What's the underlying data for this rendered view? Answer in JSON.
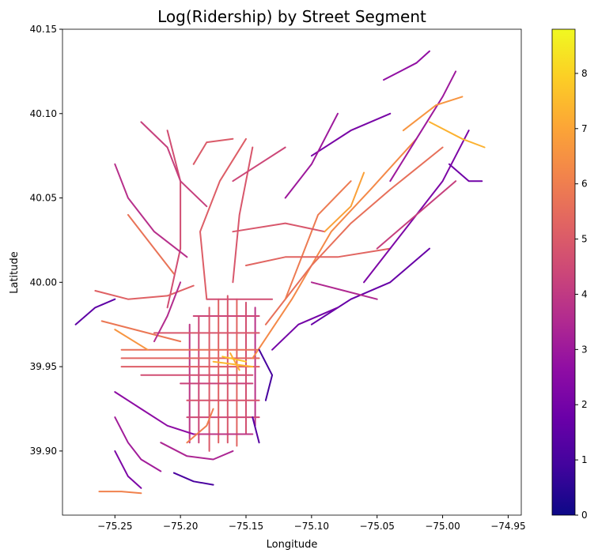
{
  "chart_data": {
    "type": "map",
    "title": "Log(Ridership) by Street Segment",
    "xlabel": "Longitude",
    "ylabel": "Latitude",
    "xlim": [
      -75.29,
      -74.94
    ],
    "ylim": [
      39.862,
      40.15
    ],
    "xticks": [
      {
        "value": -75.25,
        "label": "−75.25"
      },
      {
        "value": -75.2,
        "label": "−75.20"
      },
      {
        "value": -75.15,
        "label": "−75.15"
      },
      {
        "value": -75.1,
        "label": "−75.10"
      },
      {
        "value": -75.05,
        "label": "−75.05"
      },
      {
        "value": -75.0,
        "label": "−75.00"
      },
      {
        "value": -74.95,
        "label": "−74.95"
      }
    ],
    "yticks": [
      {
        "value": 39.9,
        "label": "39.90"
      },
      {
        "value": 39.95,
        "label": "39.95"
      },
      {
        "value": 40.0,
        "label": "40.00"
      },
      {
        "value": 40.05,
        "label": "40.05"
      },
      {
        "value": 40.1,
        "label": "40.10"
      },
      {
        "value": 40.15,
        "label": "40.15"
      }
    ],
    "colorbar": {
      "colormap": "plasma",
      "vmin": 0,
      "vmax": 8.8,
      "ticks": [
        {
          "value": 0,
          "label": "0"
        },
        {
          "value": 1,
          "label": "1"
        },
        {
          "value": 2,
          "label": "2"
        },
        {
          "value": 3,
          "label": "3"
        },
        {
          "value": 4,
          "label": "4"
        },
        {
          "value": 5,
          "label": "5"
        },
        {
          "value": 6,
          "label": "6"
        },
        {
          "value": 7,
          "label": "7"
        },
        {
          "value": 8,
          "label": "8"
        }
      ]
    },
    "segments": [
      {
        "path": [
          [
            -75.178,
            39.985
          ],
          [
            -75.178,
            39.9
          ]
        ],
        "v": 5.0
      },
      {
        "path": [
          [
            -75.171,
            39.99
          ],
          [
            -75.171,
            39.905
          ]
        ],
        "v": 5.2
      },
      {
        "path": [
          [
            -75.164,
            39.992
          ],
          [
            -75.164,
            39.905
          ]
        ],
        "v": 4.9
      },
      {
        "path": [
          [
            -75.157,
            39.99
          ],
          [
            -75.157,
            39.903
          ]
        ],
        "v": 5.3
      },
      {
        "path": [
          [
            -75.15,
            39.988
          ],
          [
            -75.15,
            39.91
          ]
        ],
        "v": 4.7
      },
      {
        "path": [
          [
            -75.143,
            39.985
          ],
          [
            -75.143,
            39.915
          ]
        ],
        "v": 3.8
      },
      {
        "path": [
          [
            -75.186,
            39.98
          ],
          [
            -75.186,
            39.905
          ]
        ],
        "v": 4.4
      },
      {
        "path": [
          [
            -75.193,
            39.975
          ],
          [
            -75.193,
            39.905
          ]
        ],
        "v": 3.9
      },
      {
        "path": [
          [
            -75.245,
            39.96
          ],
          [
            -75.14,
            39.96
          ]
        ],
        "v": 5.6
      },
      {
        "path": [
          [
            -75.245,
            39.955
          ],
          [
            -75.14,
            39.955
          ]
        ],
        "v": 5.3
      },
      {
        "path": [
          [
            -75.245,
            39.95
          ],
          [
            -75.14,
            39.95
          ]
        ],
        "v": 5.1
      },
      {
        "path": [
          [
            -75.23,
            39.945
          ],
          [
            -75.145,
            39.945
          ]
        ],
        "v": 4.6
      },
      {
        "path": [
          [
            -75.2,
            39.94
          ],
          [
            -75.145,
            39.94
          ]
        ],
        "v": 4.3
      },
      {
        "path": [
          [
            -75.195,
            39.93
          ],
          [
            -75.14,
            39.93
          ]
        ],
        "v": 4.8
      },
      {
        "path": [
          [
            -75.195,
            39.92
          ],
          [
            -75.14,
            39.92
          ]
        ],
        "v": 4.5
      },
      {
        "path": [
          [
            -75.19,
            39.91
          ],
          [
            -75.145,
            39.91
          ]
        ],
        "v": 3.9
      },
      {
        "path": [
          [
            -75.22,
            39.97
          ],
          [
            -75.14,
            39.97
          ]
        ],
        "v": 4.9
      },
      {
        "path": [
          [
            -75.19,
            39.98
          ],
          [
            -75.14,
            39.98
          ]
        ],
        "v": 4.4
      },
      {
        "path": [
          [
            -75.18,
            39.99
          ],
          [
            -75.13,
            39.99
          ]
        ],
        "v": 4.6
      },
      {
        "path": [
          [
            -75.175,
            39.953
          ],
          [
            -75.145,
            39.95
          ]
        ],
        "v": 7.4
      },
      {
        "path": [
          [
            -75.168,
            39.956
          ],
          [
            -75.15,
            39.953
          ]
        ],
        "v": 7.7
      },
      {
        "path": [
          [
            -75.162,
            39.958
          ],
          [
            -75.155,
            39.948
          ]
        ],
        "v": 7.2
      },
      {
        "path": [
          [
            -75.26,
            39.977
          ],
          [
            -75.2,
            39.965
          ]
        ],
        "v": 5.8
      },
      {
        "path": [
          [
            -75.25,
            39.972
          ],
          [
            -75.225,
            39.96
          ]
        ],
        "v": 6.6
      },
      {
        "path": [
          [
            -75.145,
            39.955
          ],
          [
            -75.115,
            39.99
          ],
          [
            -75.085,
            40.03
          ],
          [
            -75.055,
            40.055
          ],
          [
            -75.02,
            40.085
          ]
        ],
        "v": 6.3
      },
      {
        "path": [
          [
            -75.135,
            39.975
          ],
          [
            -75.1,
            40.01
          ],
          [
            -75.07,
            40.035
          ],
          [
            -75.04,
            40.055
          ],
          [
            -75.0,
            40.08
          ]
        ],
        "v": 5.6
      },
      {
        "path": [
          [
            -75.12,
            39.99
          ],
          [
            -75.095,
            40.04
          ],
          [
            -75.07,
            40.06
          ]
        ],
        "v": 5.9
      },
      {
        "path": [
          [
            -75.16,
            40.0
          ],
          [
            -75.155,
            40.04
          ],
          [
            -75.145,
            40.08
          ]
        ],
        "v": 4.9
      },
      {
        "path": [
          [
            -75.18,
            39.99
          ],
          [
            -75.185,
            40.03
          ],
          [
            -75.17,
            40.06
          ],
          [
            -75.15,
            40.085
          ]
        ],
        "v": 5.1
      },
      {
        "path": [
          [
            -75.21,
            39.985
          ],
          [
            -75.2,
            40.02
          ],
          [
            -75.2,
            40.06
          ],
          [
            -75.21,
            40.09
          ]
        ],
        "v": 4.6
      },
      {
        "path": [
          [
            -75.15,
            40.01
          ],
          [
            -75.12,
            40.015
          ],
          [
            -75.08,
            40.015
          ],
          [
            -75.04,
            40.02
          ]
        ],
        "v": 5.3
      },
      {
        "path": [
          [
            -75.16,
            40.03
          ],
          [
            -75.12,
            40.035
          ],
          [
            -75.09,
            40.03
          ]
        ],
        "v": 4.9
      },
      {
        "path": [
          [
            -75.1,
            39.975
          ],
          [
            -75.07,
            39.99
          ],
          [
            -75.04,
            40.0
          ],
          [
            -75.01,
            40.02
          ]
        ],
        "v": 1.7
      },
      {
        "path": [
          [
            -75.13,
            39.96
          ],
          [
            -75.11,
            39.975
          ],
          [
            -75.08,
            39.985
          ]
        ],
        "v": 2.0
      },
      {
        "path": [
          [
            -75.06,
            40.0
          ],
          [
            -75.03,
            40.03
          ],
          [
            -75.0,
            40.06
          ],
          [
            -74.98,
            40.09
          ]
        ],
        "v": 2.2
      },
      {
        "path": [
          [
            -75.05,
            40.02
          ],
          [
            -75.02,
            40.04
          ],
          [
            -74.99,
            40.06
          ]
        ],
        "v": 4.2
      },
      {
        "path": [
          [
            -75.04,
            40.06
          ],
          [
            -75.02,
            40.085
          ],
          [
            -75.0,
            40.11
          ],
          [
            -74.99,
            40.125
          ]
        ],
        "v": 3.0
      },
      {
        "path": [
          [
            -75.03,
            40.09
          ],
          [
            -75.005,
            40.105
          ],
          [
            -74.985,
            40.11
          ]
        ],
        "v": 6.6
      },
      {
        "path": [
          [
            -75.01,
            40.095
          ],
          [
            -74.985,
            40.085
          ],
          [
            -74.968,
            40.08
          ]
        ],
        "v": 7.3
      },
      {
        "path": [
          [
            -75.045,
            40.12
          ],
          [
            -75.02,
            40.13
          ],
          [
            -75.01,
            40.137
          ]
        ],
        "v": 2.7
      },
      {
        "path": [
          [
            -75.1,
            40.075
          ],
          [
            -75.07,
            40.09
          ],
          [
            -75.04,
            40.1
          ]
        ],
        "v": 2.1
      },
      {
        "path": [
          [
            -75.12,
            40.05
          ],
          [
            -75.1,
            40.07
          ],
          [
            -75.08,
            40.1
          ]
        ],
        "v": 3.0
      },
      {
        "path": [
          [
            -75.09,
            40.03
          ],
          [
            -75.07,
            40.045
          ],
          [
            -75.06,
            40.065
          ]
        ],
        "v": 6.9
      },
      {
        "path": [
          [
            -75.23,
            40.095
          ],
          [
            -75.21,
            40.08
          ],
          [
            -75.2,
            40.06
          ],
          [
            -75.18,
            40.045
          ]
        ],
        "v": 4.2
      },
      {
        "path": [
          [
            -75.25,
            40.07
          ],
          [
            -75.24,
            40.05
          ],
          [
            -75.22,
            40.03
          ],
          [
            -75.195,
            40.015
          ]
        ],
        "v": 3.7
      },
      {
        "path": [
          [
            -75.24,
            40.04
          ],
          [
            -75.22,
            40.02
          ],
          [
            -75.205,
            40.005
          ]
        ],
        "v": 5.7
      },
      {
        "path": [
          [
            -75.265,
            39.995
          ],
          [
            -75.24,
            39.99
          ],
          [
            -75.21,
            39.992
          ],
          [
            -75.19,
            39.998
          ]
        ],
        "v": 5.2
      },
      {
        "path": [
          [
            -75.28,
            39.975
          ],
          [
            -75.265,
            39.985
          ],
          [
            -75.25,
            39.99
          ]
        ],
        "v": 1.5
      },
      {
        "path": [
          [
            -75.25,
            39.935
          ],
          [
            -75.23,
            39.925
          ],
          [
            -75.21,
            39.915
          ],
          [
            -75.19,
            39.91
          ]
        ],
        "v": 2.6
      },
      {
        "path": [
          [
            -75.25,
            39.92
          ],
          [
            -75.24,
            39.905
          ],
          [
            -75.23,
            39.895
          ],
          [
            -75.215,
            39.888
          ]
        ],
        "v": 3.1
      },
      {
        "path": [
          [
            -75.215,
            39.905
          ],
          [
            -75.195,
            39.897
          ],
          [
            -75.175,
            39.895
          ],
          [
            -75.16,
            39.9
          ]
        ],
        "v": 3.4
      },
      {
        "path": [
          [
            -75.25,
            39.9
          ],
          [
            -75.24,
            39.885
          ],
          [
            -75.23,
            39.878
          ]
        ],
        "v": 2.2
      },
      {
        "path": [
          [
            -75.262,
            39.876
          ],
          [
            -75.245,
            39.876
          ],
          [
            -75.23,
            39.875
          ]
        ],
        "v": 6.1
      },
      {
        "path": [
          [
            -75.205,
            39.887
          ],
          [
            -75.19,
            39.882
          ],
          [
            -75.175,
            39.88
          ]
        ],
        "v": 1.1
      },
      {
        "path": [
          [
            -75.145,
            39.92
          ],
          [
            -75.14,
            39.905
          ]
        ],
        "v": 1.3
      },
      {
        "path": [
          [
            -75.14,
            39.96
          ],
          [
            -75.13,
            39.945
          ],
          [
            -75.135,
            39.93
          ]
        ],
        "v": 1.0
      },
      {
        "path": [
          [
            -75.1,
            40.0
          ],
          [
            -75.075,
            39.995
          ],
          [
            -75.05,
            39.99
          ]
        ],
        "v": 3.5
      },
      {
        "path": [
          [
            -74.995,
            40.07
          ],
          [
            -74.98,
            40.06
          ],
          [
            -74.97,
            40.06
          ]
        ],
        "v": 1.9
      },
      {
        "path": [
          [
            -75.16,
            40.06
          ],
          [
            -75.14,
            40.07
          ],
          [
            -75.12,
            40.08
          ]
        ],
        "v": 4.4
      },
      {
        "path": [
          [
            -75.19,
            40.07
          ],
          [
            -75.18,
            40.083
          ],
          [
            -75.16,
            40.085
          ]
        ],
        "v": 5.0
      },
      {
        "path": [
          [
            -75.2,
            40.0
          ],
          [
            -75.21,
            39.98
          ],
          [
            -75.22,
            39.965
          ]
        ],
        "v": 3.6
      },
      {
        "path": [
          [
            -75.195,
            39.905
          ],
          [
            -75.18,
            39.915
          ],
          [
            -75.175,
            39.925
          ]
        ],
        "v": 6.0
      }
    ]
  }
}
